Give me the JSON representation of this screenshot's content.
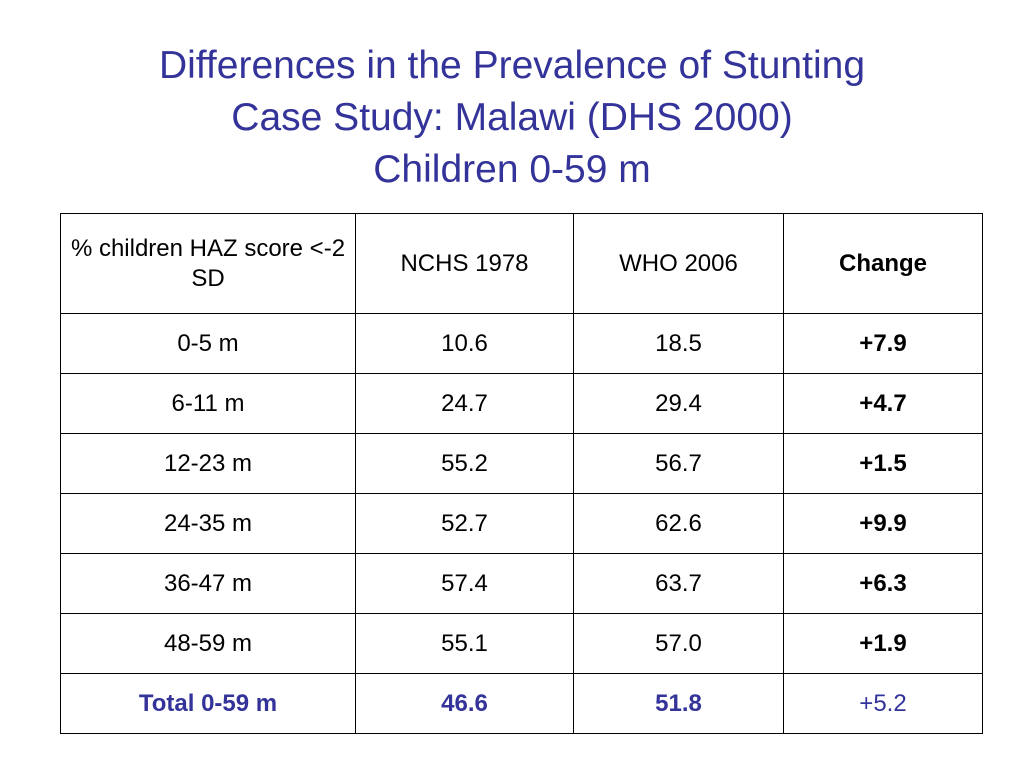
{
  "slide": {
    "title_lines": [
      "Differences in the Prevalence of Stunting",
      "Case Study: Malawi (DHS 2000)",
      "Children 0-59 m"
    ],
    "title_color": "#333399"
  },
  "table": {
    "headers": [
      "% children HAZ score <-2 SD",
      "NCHS 1978",
      "WHO 2006",
      "Change"
    ],
    "rows": [
      {
        "group": "0-5 m",
        "nchs": "10.6",
        "who": "18.5",
        "change": "+7.9"
      },
      {
        "group": "6-11 m",
        "nchs": "24.7",
        "who": "29.4",
        "change": "+4.7"
      },
      {
        "group": "12-23 m",
        "nchs": "55.2",
        "who": "56.7",
        "change": "+1.5"
      },
      {
        "group": "24-35 m",
        "nchs": "52.7",
        "who": "62.6",
        "change": "+9.9"
      },
      {
        "group": "36-47 m",
        "nchs": "57.4",
        "who": "63.7",
        "change": "+6.3"
      },
      {
        "group": "48-59 m",
        "nchs": "55.1",
        "who": "57.0",
        "change": "+1.9"
      }
    ],
    "total": {
      "group": "Total 0-59 m",
      "nchs": "46.6",
      "who": "51.8",
      "change": "+5.2"
    }
  }
}
